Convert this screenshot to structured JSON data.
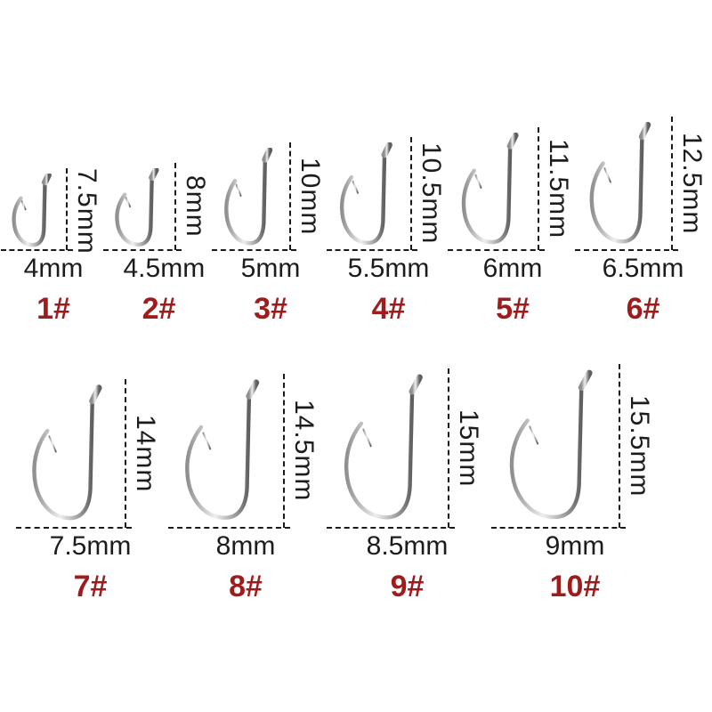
{
  "colors": {
    "background": "#ffffff",
    "size_label_red": "#9e1c1c",
    "measure_text": "#1c1c1c",
    "dash_line": "#1a1a1a"
  },
  "unit": "mm",
  "hooks": [
    {
      "size_label": "1#",
      "width_label": "4mm",
      "height_label": "7.5mm",
      "row": 1
    },
    {
      "size_label": "2#",
      "width_label": "4.5mm",
      "height_label": "8mm",
      "row": 1
    },
    {
      "size_label": "3#",
      "width_label": "5mm",
      "height_label": "10mm",
      "row": 1
    },
    {
      "size_label": "4#",
      "width_label": "5.5mm",
      "height_label": "10.5mm",
      "row": 1
    },
    {
      "size_label": "5#",
      "width_label": "6mm",
      "height_label": "11.5mm",
      "row": 1
    },
    {
      "size_label": "6#",
      "width_label": "6.5mm",
      "height_label": "12.5mm",
      "row": 1
    },
    {
      "size_label": "7#",
      "width_label": "7.5mm",
      "height_label": "14mm",
      "row": 2
    },
    {
      "size_label": "8#",
      "width_label": "8mm",
      "height_label": "14.5mm",
      "row": 2
    },
    {
      "size_label": "9#",
      "width_label": "8.5mm",
      "height_label": "15mm",
      "row": 2
    },
    {
      "size_label": "10#",
      "width_label": "9mm",
      "height_label": "15.5mm",
      "row": 2
    }
  ]
}
